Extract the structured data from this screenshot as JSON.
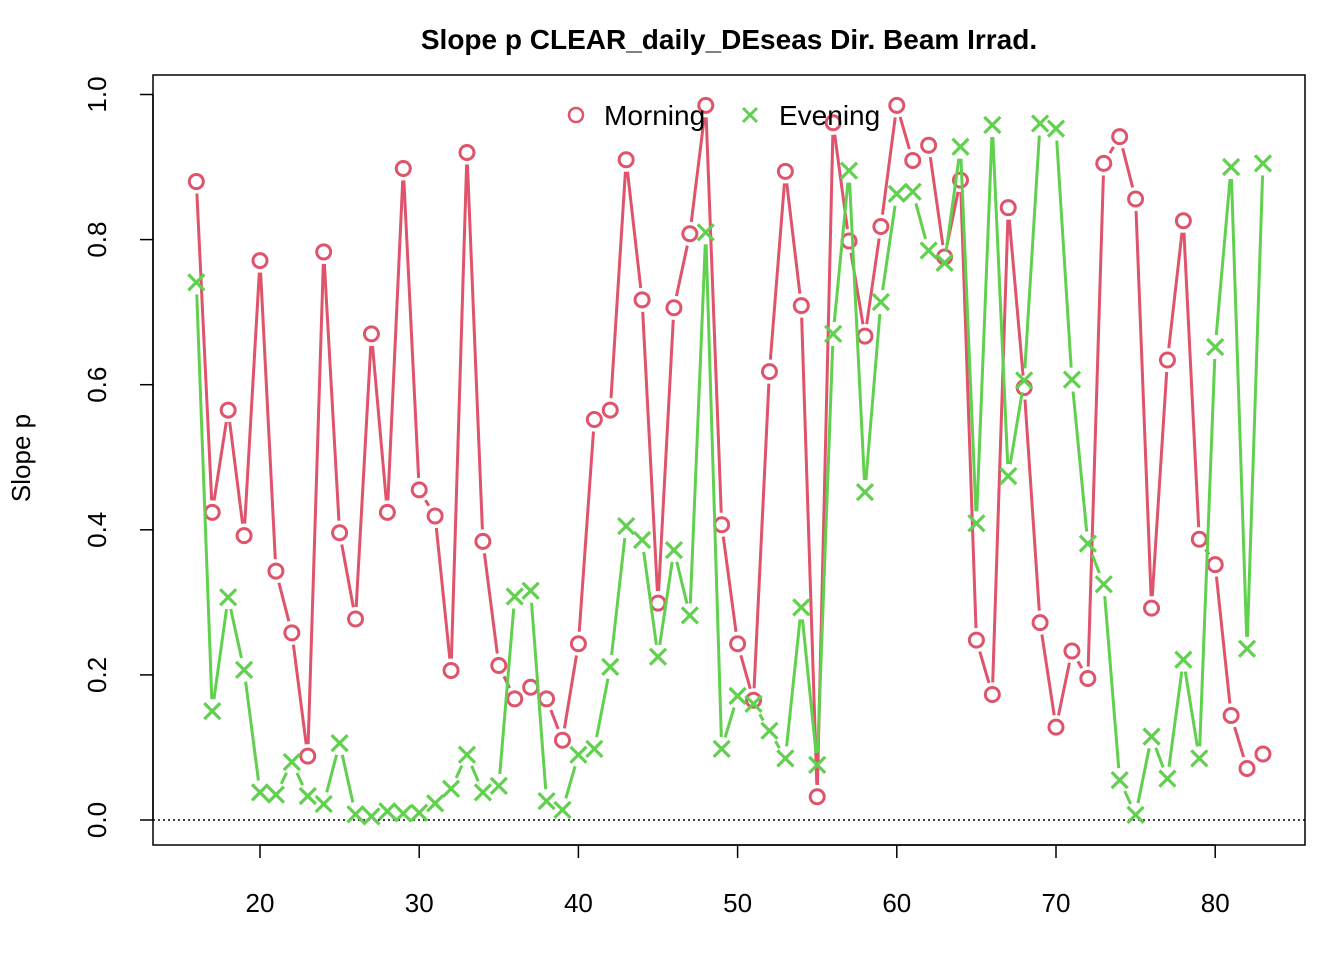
{
  "chart_data": {
    "type": "line",
    "title": "Slope p CLEAR_daily_DEseas Dir. Beam Irrad.",
    "xlabel": "",
    "ylabel": "Slope p",
    "xlim": [
      16,
      83
    ],
    "ylim": [
      0,
      1
    ],
    "x_ticks": [
      20,
      30,
      40,
      50,
      60,
      70,
      80
    ],
    "y_ticks": [
      "0.0",
      "0.2",
      "0.4",
      "0.6",
      "0.8",
      "1.0"
    ],
    "reference_line": 0,
    "grid": false,
    "legend_position": "top-center",
    "x": [
      16,
      17,
      18,
      19,
      20,
      21,
      22,
      23,
      24,
      25,
      26,
      27,
      28,
      29,
      30,
      31,
      32,
      33,
      34,
      35,
      36,
      37,
      38,
      39,
      40,
      41,
      42,
      43,
      44,
      45,
      46,
      47,
      48,
      49,
      50,
      51,
      52,
      53,
      54,
      55,
      56,
      57,
      58,
      59,
      60,
      61,
      62,
      63,
      64,
      65,
      66,
      67,
      68,
      69,
      70,
      71,
      72,
      73,
      74,
      75,
      76,
      77,
      78,
      79,
      80,
      81,
      82,
      83
    ],
    "series": [
      {
        "name": "Morning",
        "marker": "circle",
        "color": "#DF536B",
        "values": [
          0.88,
          0.424,
          0.565,
          0.392,
          0.771,
          0.343,
          0.258,
          0.088,
          0.783,
          0.396,
          0.277,
          0.67,
          0.424,
          0.898,
          0.455,
          0.419,
          0.206,
          0.92,
          0.384,
          0.213,
          0.167,
          0.183,
          0.167,
          0.11,
          0.243,
          0.552,
          0.565,
          0.91,
          0.717,
          0.299,
          0.706,
          0.808,
          0.985,
          0.407,
          0.243,
          0.165,
          0.618,
          0.894,
          0.709,
          0.032,
          0.961,
          0.798,
          0.667,
          0.818,
          0.985,
          0.909,
          0.93,
          0.776,
          0.882,
          0.248,
          0.173,
          0.844,
          0.596,
          0.272,
          0.128,
          0.233,
          0.195,
          0.905,
          0.942,
          0.856,
          0.292,
          0.634,
          0.826,
          0.387,
          0.352,
          0.144,
          0.071,
          0.091
        ]
      },
      {
        "name": "Evening",
        "marker": "cross",
        "color": "#61D04F",
        "values": [
          0.741,
          0.15,
          0.307,
          0.207,
          0.038,
          0.035,
          0.08,
          0.033,
          0.022,
          0.106,
          0.008,
          0.005,
          0.012,
          0.009,
          0.01,
          0.023,
          0.043,
          0.09,
          0.038,
          0.047,
          0.308,
          0.316,
          0.026,
          0.014,
          0.09,
          0.098,
          0.211,
          0.405,
          0.386,
          0.225,
          0.372,
          0.282,
          0.81,
          0.098,
          0.171,
          0.16,
          0.123,
          0.085,
          0.293,
          0.076,
          0.67,
          0.895,
          0.452,
          0.714,
          0.863,
          0.866,
          0.785,
          0.768,
          0.928,
          0.409,
          0.958,
          0.474,
          0.606,
          0.96,
          0.953,
          0.607,
          0.381,
          0.325,
          0.055,
          0.007,
          0.115,
          0.057,
          0.221,
          0.085,
          0.652,
          0.9,
          0.236,
          0.905
        ]
      }
    ]
  }
}
